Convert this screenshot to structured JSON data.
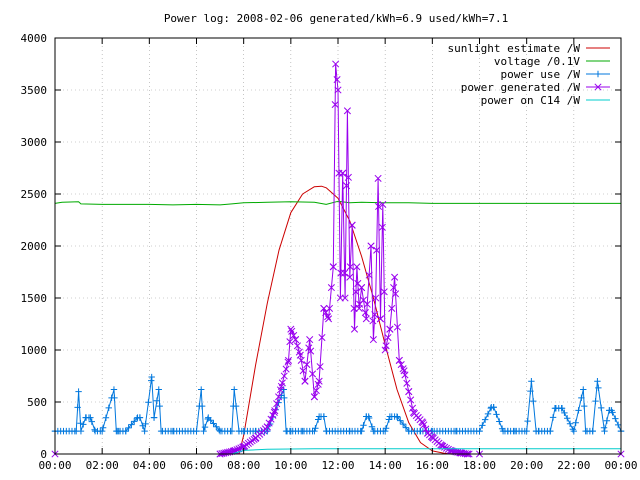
{
  "chart_data": {
    "type": "line",
    "title": "Power log: 2008-02-06 generated/kWh=6.9 used/kWh=7.1",
    "xlabel": "",
    "ylabel": "",
    "x_ticks": [
      "00:00",
      "02:00",
      "04:00",
      "06:00",
      "08:00",
      "10:00",
      "12:00",
      "14:00",
      "16:00",
      "18:00",
      "20:00",
      "22:00",
      "00:00"
    ],
    "y_ticks": [
      "0",
      "500",
      "1000",
      "1500",
      "2000",
      "2500",
      "3000",
      "3500",
      "4000"
    ],
    "xlim_hours": [
      0,
      24
    ],
    "ylim": [
      0,
      4000
    ],
    "grid": true,
    "legend_position": "top-right",
    "series": [
      {
        "name": "sunlight estimate /W",
        "color": "#cc0000",
        "x_hours": [
          7.8,
          8.0,
          8.5,
          9.0,
          9.5,
          10.0,
          10.5,
          11.0,
          11.3,
          11.5,
          12.0,
          12.5,
          13.0,
          13.5,
          14.0,
          14.5,
          15.0,
          15.5,
          16.0,
          16.5,
          17.0,
          17.3
        ],
        "values": [
          0,
          180,
          850,
          1450,
          1960,
          2320,
          2500,
          2570,
          2575,
          2560,
          2460,
          2240,
          1900,
          1500,
          1050,
          620,
          300,
          110,
          30,
          8,
          0,
          0
        ]
      },
      {
        "name": "voltage /0.1V",
        "color": "#00aa00",
        "x_hours": [
          0,
          0.3,
          1.0,
          1.1,
          2,
          3,
          4,
          5,
          6,
          7,
          7.5,
          8,
          9,
          10,
          11,
          11.5,
          12,
          12.5,
          13,
          14,
          15,
          16,
          17,
          18,
          19,
          20,
          21,
          22,
          23,
          24
        ],
        "values": [
          2410,
          2420,
          2425,
          2405,
          2400,
          2400,
          2400,
          2395,
          2400,
          2395,
          2405,
          2415,
          2420,
          2425,
          2420,
          2400,
          2430,
          2415,
          2420,
          2415,
          2415,
          2410,
          2410,
          2410,
          2410,
          2410,
          2410,
          2410,
          2410,
          2410
        ]
      },
      {
        "name": "power use /W",
        "color": "#0077dd",
        "x_hours": [
          0,
          0.9,
          1.0,
          1.1,
          1.3,
          1.5,
          1.7,
          2.0,
          2.5,
          2.6,
          2.7,
          3.0,
          3.5,
          3.6,
          3.8,
          4.1,
          4.2,
          4.4,
          4.5,
          5.0,
          6.0,
          6.2,
          6.3,
          6.5,
          7.0,
          7.5,
          7.6,
          7.8,
          8.0,
          8.5,
          9.0,
          9.7,
          9.8,
          10.0,
          10.5,
          11.0,
          11.2,
          11.4,
          11.5,
          12.0,
          12.5,
          13.0,
          13.2,
          13.3,
          13.5,
          14.0,
          14.2,
          14.5,
          15.0,
          15.5,
          16.0,
          17.0,
          18.0,
          18.5,
          18.6,
          19.0,
          19.2,
          19.5,
          20.0,
          20.2,
          20.4,
          20.5,
          21.0,
          21.2,
          21.5,
          22.0,
          22.4,
          22.5,
          22.8,
          23.0,
          23.3,
          23.5,
          23.6,
          24.0
        ],
        "values": [
          220,
          220,
          600,
          220,
          350,
          350,
          220,
          220,
          620,
          220,
          220,
          220,
          350,
          350,
          220,
          740,
          350,
          620,
          220,
          220,
          220,
          620,
          220,
          350,
          220,
          220,
          620,
          220,
          220,
          220,
          220,
          620,
          220,
          220,
          220,
          220,
          360,
          360,
          220,
          220,
          220,
          220,
          360,
          360,
          220,
          220,
          360,
          360,
          220,
          220,
          220,
          220,
          220,
          450,
          450,
          220,
          220,
          220,
          220,
          700,
          220,
          220,
          220,
          440,
          440,
          220,
          620,
          220,
          220,
          700,
          220,
          420,
          420,
          220
        ]
      },
      {
        "name": "power generated /W",
        "color": "#9900ee",
        "x_hours": [
          0,
          7.0,
          7.6,
          8.0,
          8.5,
          9.0,
          9.3,
          9.6,
          9.9,
          10.0,
          10.2,
          10.4,
          10.6,
          10.8,
          11.0,
          11.2,
          11.4,
          11.6,
          11.8,
          11.9,
          12.0,
          12.1,
          12.2,
          12.3,
          12.4,
          12.5,
          12.6,
          12.7,
          12.8,
          12.9,
          13.0,
          13.2,
          13.4,
          13.5,
          13.6,
          13.7,
          13.8,
          13.9,
          14.0,
          14.2,
          14.4,
          14.6,
          14.8,
          15.0,
          15.2,
          15.4,
          15.6,
          15.8,
          16.0,
          16.4,
          16.8,
          17.2,
          17.5,
          18.0,
          24.0
        ],
        "values": [
          0,
          0,
          30,
          70,
          150,
          260,
          400,
          650,
          900,
          1200,
          1100,
          950,
          700,
          1100,
          550,
          700,
          1400,
          1300,
          1800,
          3750,
          3500,
          1500,
          2700,
          1500,
          3300,
          1700,
          2200,
          1200,
          1800,
          1400,
          1600,
          1300,
          2000,
          1100,
          1500,
          2650,
          1300,
          2400,
          1000,
          1200,
          1700,
          900,
          800,
          600,
          400,
          350,
          300,
          200,
          160,
          80,
          30,
          10,
          0,
          0,
          0
        ]
      },
      {
        "name": "power on C14 /W",
        "color": "#00cccc",
        "x_hours": [
          0,
          7.5,
          7.8,
          8.0,
          9.0,
          11.0,
          13.0,
          15.0,
          16.5,
          17.0,
          18.0,
          20.0,
          22.0,
          24.0
        ],
        "values": [
          0,
          0,
          20,
          35,
          45,
          50,
          50,
          50,
          50,
          50,
          50,
          50,
          50,
          50
        ]
      }
    ]
  }
}
